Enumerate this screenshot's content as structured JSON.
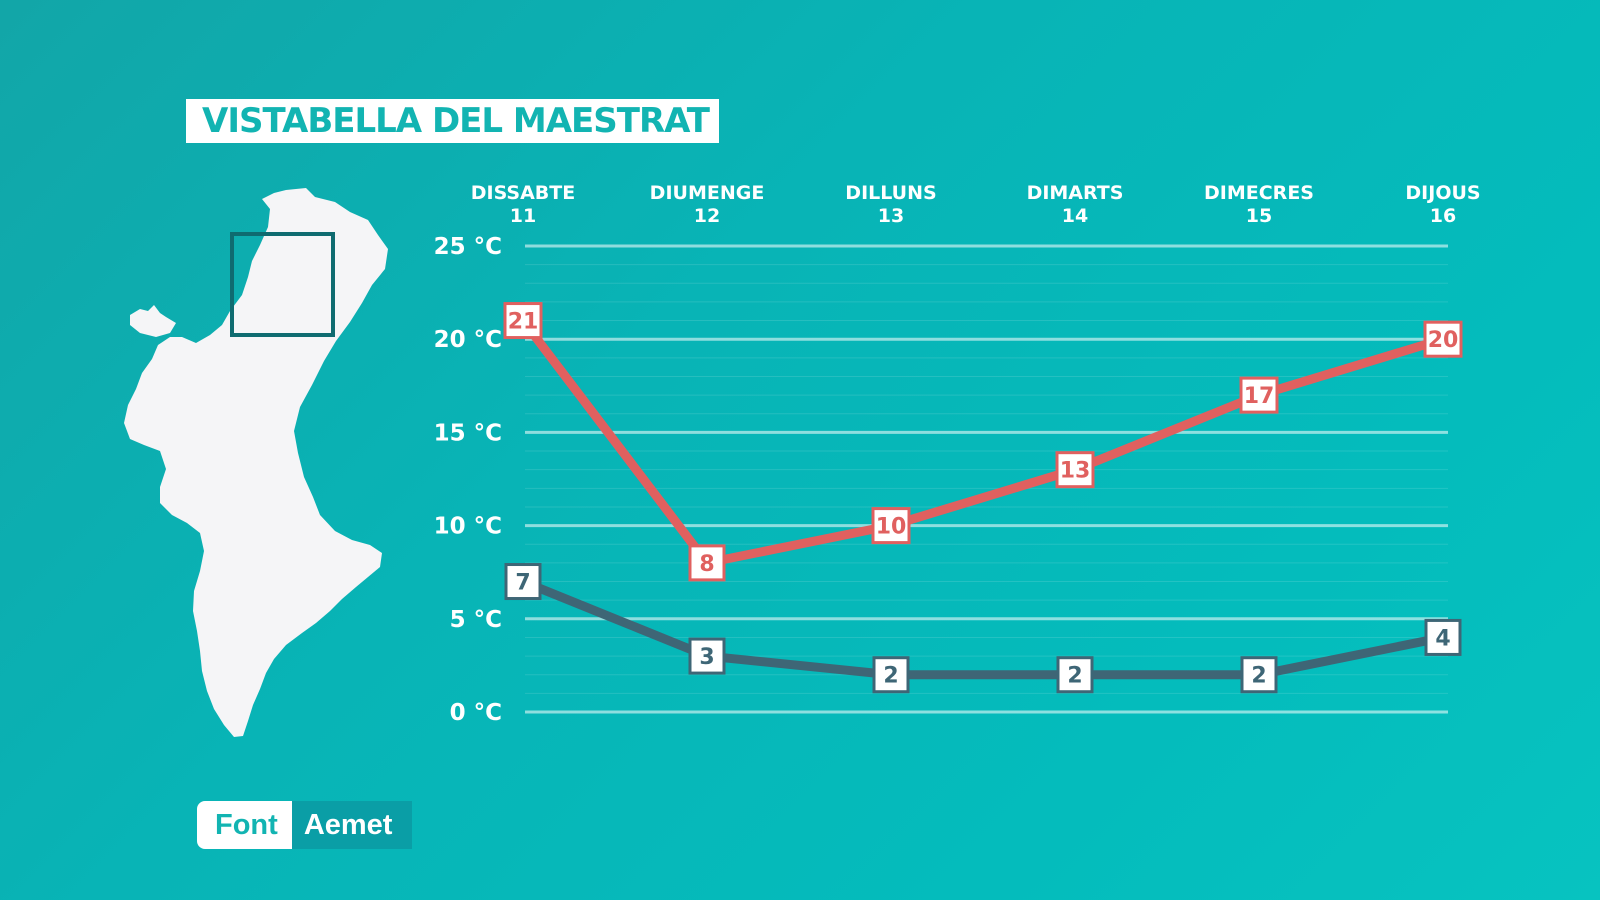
{
  "header": {
    "title": "VISTABELLA DEL MAESTRAT"
  },
  "source": {
    "label": "Font",
    "value": "Aemet"
  },
  "colors": {
    "background": "#08b4b6",
    "accent_teal": "#12b4b2",
    "max_line": "#e0605f",
    "min_line": "#3e6676",
    "map_fill": "#f5f5f7",
    "map_box": "#0f6b70"
  },
  "map": {
    "icon": "valencian-community-map-icon",
    "highlight": "location-box-icon"
  },
  "chart_data": {
    "type": "line",
    "categories": [
      {
        "day": "DISSABTE",
        "date": "11"
      },
      {
        "day": "DIUMENGE",
        "date": "12"
      },
      {
        "day": "DILLUNS",
        "date": "13"
      },
      {
        "day": "DIMARTS",
        "date": "14"
      },
      {
        "day": "DIMECRES",
        "date": "15"
      },
      {
        "day": "DIJOUS",
        "date": "16"
      }
    ],
    "series": [
      {
        "key": "max",
        "values": [
          21,
          8,
          10,
          13,
          17,
          20
        ]
      },
      {
        "key": "min",
        "values": [
          7,
          3,
          2,
          2,
          2,
          4
        ]
      }
    ],
    "yticks": [
      {
        "value": 25,
        "label": "25 °C"
      },
      {
        "value": 20,
        "label": "20 °C"
      },
      {
        "value": 15,
        "label": "15 °C"
      },
      {
        "value": 10,
        "label": "10 °C"
      },
      {
        "value": 5,
        "label": "5 °C"
      },
      {
        "value": 0,
        "label": "0 °C"
      }
    ],
    "ylim": [
      0,
      25
    ],
    "grid": true
  }
}
